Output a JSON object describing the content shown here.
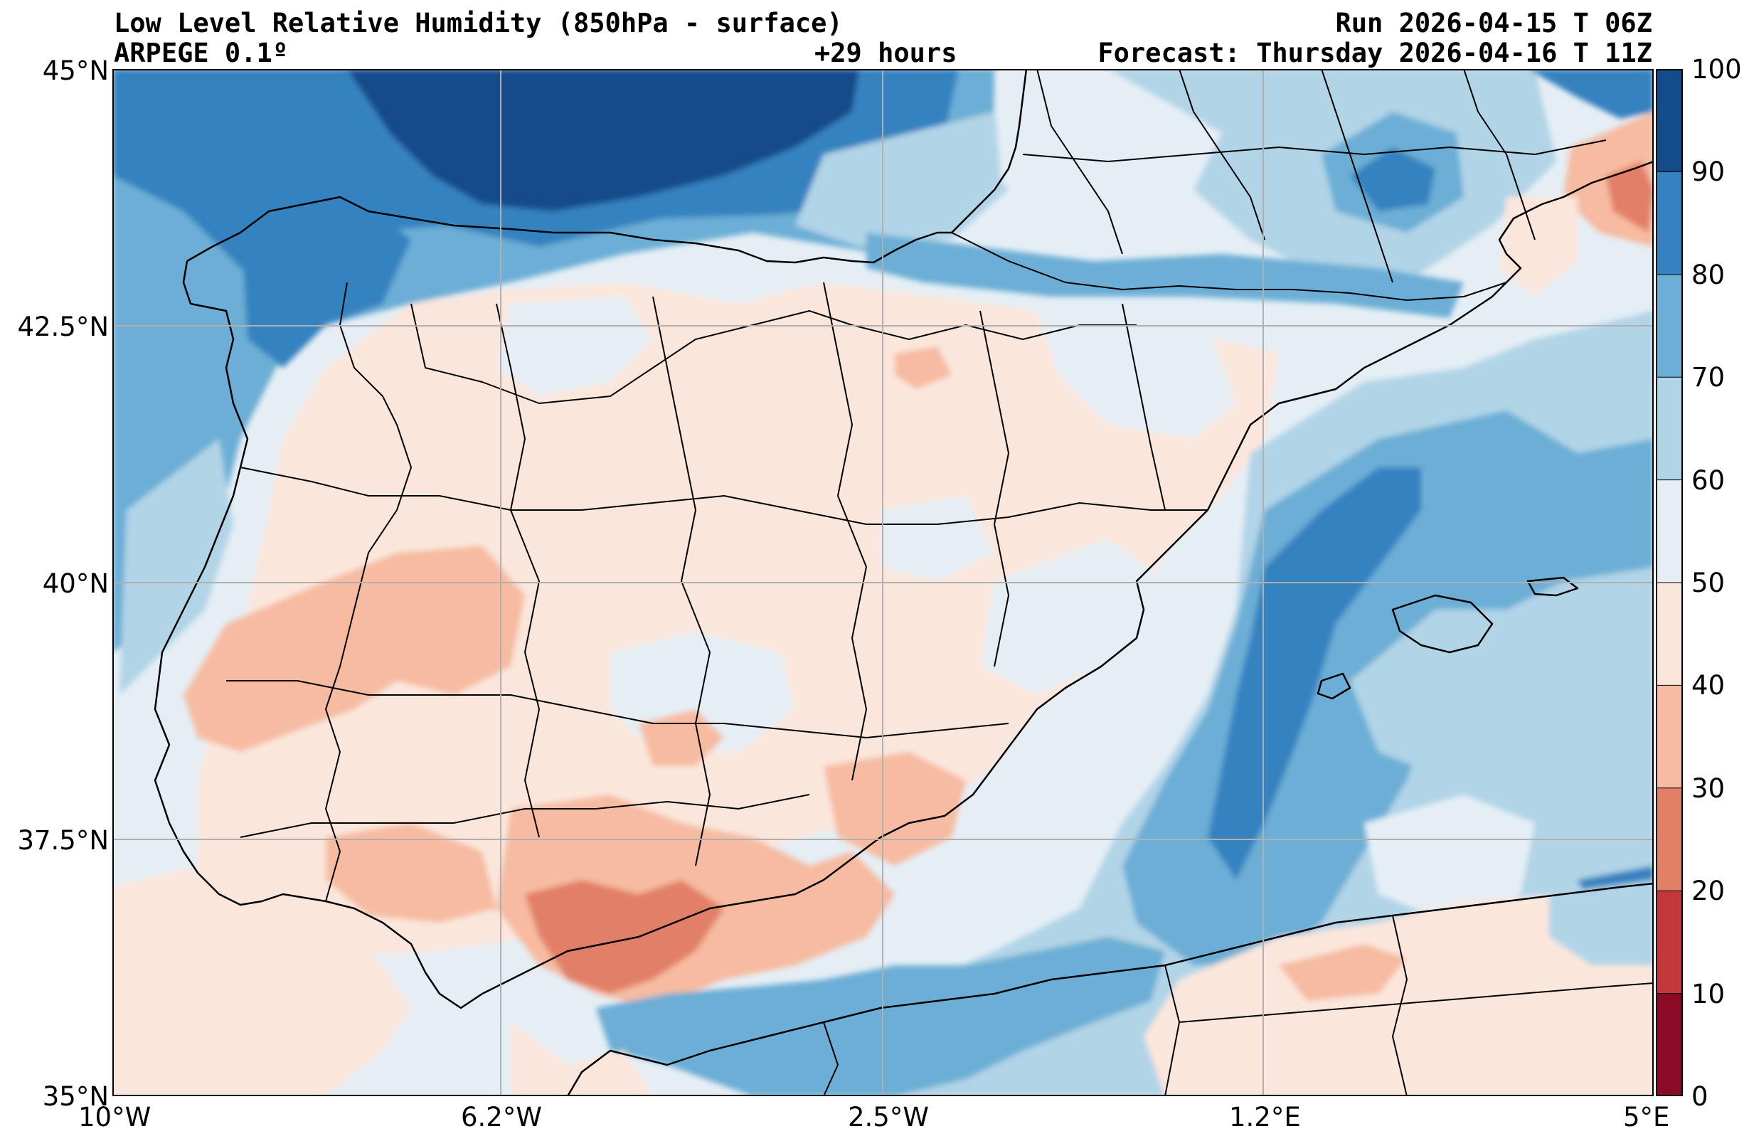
{
  "header": {
    "title": "Low Level Relative Humidity (850hPa - surface)",
    "model": "ARPEGE 0.1º",
    "lead_time": "+29 hours",
    "run": "Run 2026-04-15 T 06Z",
    "forecast": "Forecast: Thursday 2026-04-16 T 11Z"
  },
  "axes": {
    "lat_labels": [
      "45°N",
      "42.5°N",
      "40°N",
      "37.5°N",
      "35°N"
    ],
    "lon_labels": [
      "10°W",
      "6.2°W",
      "2.5°W",
      "1.2°E",
      "5°E"
    ]
  },
  "colorbar": {
    "levels": [
      0,
      10,
      20,
      30,
      40,
      50,
      60,
      70,
      80,
      90,
      100
    ],
    "labels": [
      "0",
      "10",
      "20",
      "30",
      "40",
      "50",
      "60",
      "70",
      "80",
      "90",
      "100"
    ],
    "colors": [
      "#8b0a26",
      "#c4373a",
      "#e27f67",
      "#f6bba0",
      "#fbe6dc",
      "#e5eef5",
      "#b1d4e7",
      "#6caed5",
      "#3682c0",
      "#144c8a"
    ]
  },
  "map": {
    "extent": {
      "lon_min": -10,
      "lon_max": 5,
      "lat_min": 35,
      "lat_max": 45
    },
    "grid": true
  }
}
